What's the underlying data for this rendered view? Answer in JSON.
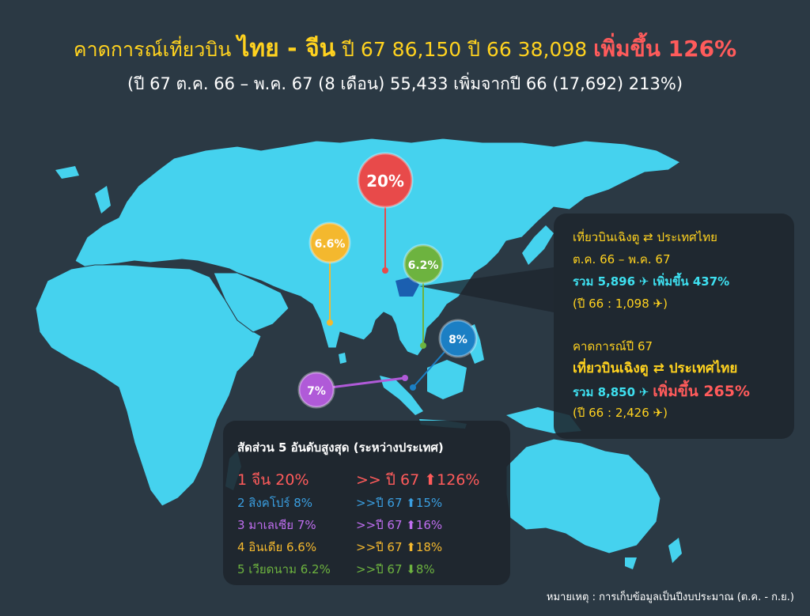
{
  "headline": {
    "part1": "คาดการณ์เที่ยวบิน",
    "route": "ไทย - จีน",
    "part2": "ปี 67 86,150  ปี 66 38,098",
    "growth": "เพิ่มขึ้น 126%"
  },
  "subline": "(ปี 67 ต.ค. 66 – พ.ค. 67 (8 เดือน) 55,433 เพิ่มจากปี 66 (17,692) 213%)",
  "pins": {
    "china": {
      "label": "20%",
      "color": "#e84a4a"
    },
    "india": {
      "label": "6.6%",
      "color": "#f4b82e"
    },
    "vietnam": {
      "label": "6.2%",
      "color": "#6db33f"
    },
    "singapore": {
      "label": "8%",
      "color": "#1b7fc4"
    },
    "malaysia": {
      "label": "7%",
      "color": "#b05ad8"
    }
  },
  "charter_panel": {
    "title": "เที่ยวบินเฉิงตู ⇄ ประเทศไทย",
    "period": "ต.ค. 66 – พ.ค. 67",
    "total": "รวม 5,896",
    "growth": "เพิ่มขึ้น 437%",
    "prev": "(ปี 66 : 1,098",
    "forecast_title": "คาดการณ์ปี 67",
    "forecast_route": "เที่ยวบินเฉิงตู ⇄ ประเทศไทย",
    "forecast_total": "รวม 8,850",
    "forecast_growth": "เพิ่มขึ้น 265%",
    "forecast_prev": "(ปี 66 : 2,426"
  },
  "ranking": {
    "title": "สัดส่วน 5 อันดับสูงสุด (ระหว่างประเทศ)",
    "items": [
      {
        "rank": "1 จีน 20%",
        "year": ">> ปี 67 ⬆126%",
        "color": "#ff5b5b"
      },
      {
        "rank": "2 สิงคโปร์ 8%",
        "year": ">>ปี 67 ⬆15%",
        "color": "#3a9ee0"
      },
      {
        "rank": "3 มาเลเซีย 7%",
        "year": ">>ปี 67 ⬆16%",
        "color": "#c06ef0"
      },
      {
        "rank": "4 อินเดีย 6.6%",
        "year": ">>ปี 67 ⬆18%",
        "color": "#f4b82e"
      },
      {
        "rank": "5 เวียดนาม 6.2%",
        "year": ">>ปี 67 ⬇8%",
        "color": "#6db33f"
      }
    ]
  },
  "note": "หมายเหตุ : การเก็บข้อมูลเป็นปีงบประมาณ (ต.ค. - ก.ย.)",
  "colors": {
    "land": "#45d2ee",
    "background": "#2b3944",
    "highlight": "#1b5fb0"
  }
}
